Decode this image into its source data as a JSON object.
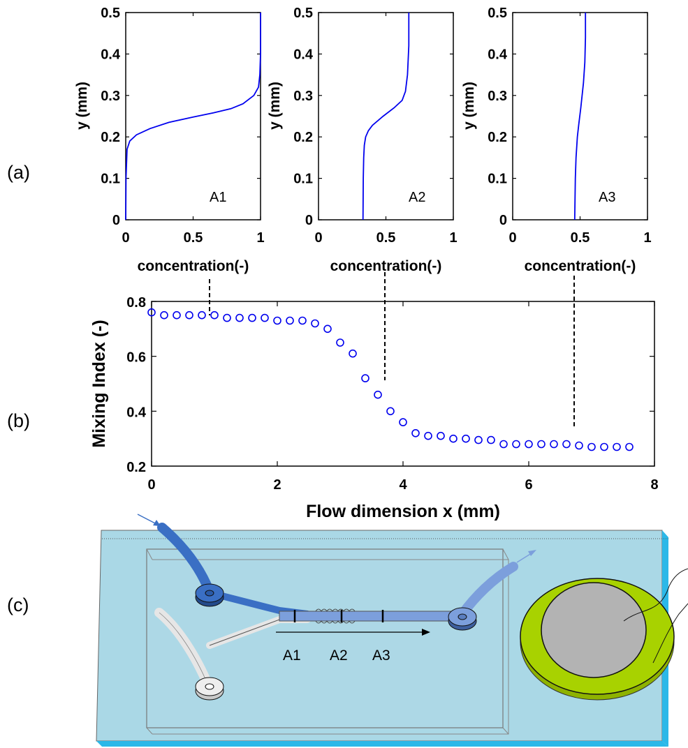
{
  "panel_labels": {
    "a": "(a)",
    "b": "(b)",
    "c": "(c)"
  },
  "chart_data": [
    {
      "type": "line",
      "inset_label": "A1",
      "xlabel": "concentration(-)",
      "ylabel": "y (mm)",
      "xlim": [
        0,
        1
      ],
      "ylim": [
        0,
        0.5
      ],
      "xticks": [
        "0",
        "0.5",
        "1"
      ],
      "yticks": [
        "0",
        "0.1",
        "0.2",
        "0.3",
        "0.4",
        "0.5"
      ],
      "color": "#0000ee",
      "x": [
        0,
        0.002,
        0.01,
        0.03,
        0.08,
        0.18,
        0.32,
        0.5,
        0.65,
        0.78,
        0.87,
        0.95,
        0.985,
        0.995,
        1.0,
        1.0
      ],
      "y": [
        0,
        0.1,
        0.17,
        0.19,
        0.205,
        0.22,
        0.235,
        0.248,
        0.258,
        0.268,
        0.28,
        0.3,
        0.32,
        0.35,
        0.4,
        0.5
      ]
    },
    {
      "type": "line",
      "inset_label": "A2",
      "xlabel": "concentration(-)",
      "ylabel": "y (mm)",
      "xlim": [
        0,
        1
      ],
      "ylim": [
        0,
        0.5
      ],
      "xticks": [
        "0",
        "0.5",
        "1"
      ],
      "yticks": [
        "0",
        "0.1",
        "0.2",
        "0.3",
        "0.4",
        "0.5"
      ],
      "color": "#0000ee",
      "x": [
        0.33,
        0.332,
        0.335,
        0.34,
        0.35,
        0.37,
        0.4,
        0.48,
        0.56,
        0.62,
        0.645,
        0.66,
        0.67,
        0.67
      ],
      "y": [
        0,
        0.1,
        0.15,
        0.18,
        0.2,
        0.215,
        0.228,
        0.25,
        0.27,
        0.288,
        0.31,
        0.35,
        0.42,
        0.5
      ]
    },
    {
      "type": "line",
      "inset_label": "A3",
      "xlabel": "concentration(-)",
      "ylabel": "y (mm)",
      "xlim": [
        0,
        1
      ],
      "ylim": [
        0,
        0.5
      ],
      "xticks": [
        "0",
        "0.5",
        "1"
      ],
      "yticks": [
        "0",
        "0.1",
        "0.2",
        "0.3",
        "0.4",
        "0.5"
      ],
      "color": "#0000ee",
      "x": [
        0.46,
        0.465,
        0.47,
        0.48,
        0.49,
        0.505,
        0.515,
        0.525,
        0.535,
        0.54,
        0.54
      ],
      "y": [
        0,
        0.1,
        0.15,
        0.2,
        0.23,
        0.27,
        0.3,
        0.33,
        0.38,
        0.44,
        0.5
      ]
    },
    {
      "type": "scatter",
      "xlabel": "Flow dimension x (mm)",
      "ylabel": "Mixing Index (-)",
      "xlim": [
        0,
        8
      ],
      "ylim": [
        0.2,
        0.8
      ],
      "xticks": [
        "0",
        "2",
        "4",
        "6",
        "8"
      ],
      "yticks": [
        "0.2",
        "0.4",
        "0.6",
        "0.8"
      ],
      "color": "#0000ee",
      "x": [
        0,
        0.2,
        0.4,
        0.6,
        0.8,
        1.0,
        1.2,
        1.4,
        1.6,
        1.8,
        2.0,
        2.2,
        2.4,
        2.6,
        2.8,
        3.0,
        3.2,
        3.4,
        3.6,
        3.8,
        4.0,
        4.2,
        4.4,
        4.6,
        4.8,
        5.0,
        5.2,
        5.4,
        5.6,
        5.8,
        6.0,
        6.2,
        6.4,
        6.6,
        6.8,
        7.0,
        7.2,
        7.4,
        7.6
      ],
      "y": [
        0.76,
        0.75,
        0.75,
        0.75,
        0.75,
        0.75,
        0.74,
        0.74,
        0.74,
        0.74,
        0.73,
        0.73,
        0.73,
        0.72,
        0.7,
        0.65,
        0.61,
        0.52,
        0.46,
        0.4,
        0.36,
        0.32,
        0.31,
        0.31,
        0.3,
        0.3,
        0.295,
        0.295,
        0.28,
        0.28,
        0.28,
        0.28,
        0.28,
        0.28,
        0.275,
        0.27,
        0.27,
        0.27,
        0.27
      ]
    }
  ],
  "schematic": {
    "labels": [
      "A1",
      "A2",
      "A3"
    ],
    "colors": {
      "base": "#aad8e6",
      "base_edge": "#2bb8e8",
      "inlet_blue": "#3a6fc4",
      "inlet_gray": "#e6e6e6",
      "outlet": "#7c9fdc",
      "piezo_ring": "#a8d200",
      "piezo_disc": "#b3b3b3"
    }
  }
}
